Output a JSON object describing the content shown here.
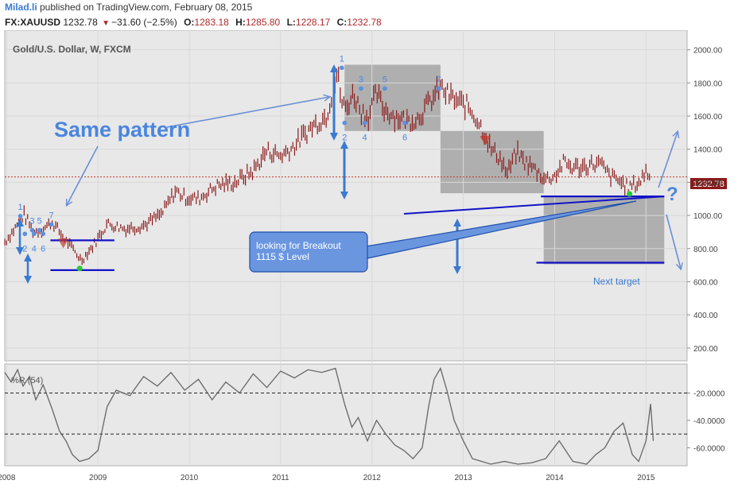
{
  "header": {
    "brand": "Milad.li",
    "published": " published on TradingView.com, February 08, 2015",
    "symbol": "FX:XAUUSD",
    "last": "1232.78",
    "change": "−31.60 (−2.5%)",
    "o_label": "O:",
    "o_value": "1283.18",
    "h_label": "H:",
    "h_value": "1285.80",
    "l_label": "L:",
    "l_value": "1228.17",
    "c_label": "C:",
    "c_value": "1232.78"
  },
  "main": {
    "title": "Gold/U.S. Dollar, W, FXCM",
    "pattern_text": "Same pattern",
    "callout_text_1": "looking for Breakout",
    "callout_text_2": "1115 $ Level",
    "next_target": "Next target",
    "question": "?",
    "price_tag": "1232.78"
  },
  "indicator": {
    "label": "%R (54)"
  },
  "colors": {
    "candle": "#8b1a1a",
    "annotation": "#3a7ad1",
    "box": "#a5a5a5",
    "level": "#1212c8",
    "pane": "#ececec"
  },
  "chart_data": [
    {
      "type": "line",
      "title": "Gold/U.S. Dollar, W, FXCM",
      "x_ticks": [
        "2008",
        "2009",
        "2010",
        "2011",
        "2012",
        "2013",
        "2014",
        "2015"
      ],
      "y_ticks": [
        200,
        400,
        600,
        800,
        1000,
        1200,
        1400,
        1600,
        1800,
        2000
      ],
      "y_tick_labels": [
        "200.00",
        "400.00",
        "600.00",
        "800.00",
        "1000.00",
        "1200.00",
        "1400.00",
        "1600.00",
        "1800.00",
        "2000.00"
      ],
      "ylim": [
        180,
        2080
      ],
      "xlim": [
        2007.98,
        2015.45
      ],
      "series": [
        {
          "style": "weekly bars",
          "x": [
            2007.98,
            2008.1,
            2008.19,
            2008.3,
            2008.4,
            2008.5,
            2008.62,
            2008.72,
            2008.82,
            2008.95,
            2009.1,
            2009.3,
            2009.5,
            2009.7,
            2009.85,
            2009.95,
            2010.1,
            2010.3,
            2010.5,
            2010.7,
            2010.85,
            2011.0,
            2011.15,
            2011.35,
            2011.5,
            2011.62,
            2011.67,
            2011.72,
            2011.76,
            2011.8,
            2011.88,
            2011.96,
            2012.05,
            2012.12,
            2012.25,
            2012.4,
            2012.5,
            2012.6,
            2012.75,
            2012.85,
            2012.95,
            2013.05,
            2013.15,
            2013.25,
            2013.3,
            2013.4,
            2013.48,
            2013.58,
            2013.68,
            2013.78,
            2013.9,
            2014.0,
            2014.1,
            2014.2,
            2014.3,
            2014.4,
            2014.5,
            2014.6,
            2014.7,
            2014.8,
            2014.86,
            2014.93,
            2015.0,
            2015.05
          ],
          "y": [
            840,
            930,
            1005,
            900,
            920,
            960,
            870,
            800,
            730,
            820,
            950,
            920,
            940,
            1010,
            1150,
            1110,
            1100,
            1180,
            1200,
            1270,
            1390,
            1360,
            1420,
            1540,
            1600,
            1860,
            1680,
            1640,
            1700,
            1730,
            1630,
            1600,
            1740,
            1650,
            1600,
            1570,
            1590,
            1660,
            1770,
            1720,
            1680,
            1660,
            1580,
            1480,
            1400,
            1350,
            1250,
            1380,
            1320,
            1280,
            1220,
            1240,
            1320,
            1290,
            1290,
            1310,
            1310,
            1240,
            1210,
            1170,
            1180,
            1200,
            1270,
            1232
          ]
        },
        {
          "name": "",
          "style": "horizontal reference",
          "value": 1232.78
        }
      ],
      "annotations": [
        {
          "text": "1",
          "x": 2008.15,
          "y": 1025
        },
        {
          "text": "3",
          "x": 2008.28,
          "y": 940
        },
        {
          "text": "5",
          "x": 2008.36,
          "y": 940
        },
        {
          "text": "7",
          "x": 2008.49,
          "y": 975
        },
        {
          "text": "2",
          "x": 2008.2,
          "y": 860
        },
        {
          "text": "4",
          "x": 2008.3,
          "y": 860
        },
        {
          "text": "6",
          "x": 2008.4,
          "y": 860
        },
        {
          "text": "1",
          "x": 2011.67,
          "y": 1920
        },
        {
          "text": "3",
          "x": 2011.88,
          "y": 1795
        },
        {
          "text": "5",
          "x": 2012.14,
          "y": 1795
        },
        {
          "text": "7",
          "x": 2012.73,
          "y": 1795
        },
        {
          "text": "2",
          "x": 2011.7,
          "y": 1530
        },
        {
          "text": "4",
          "x": 2011.92,
          "y": 1530
        },
        {
          "text": "6",
          "x": 2012.36,
          "y": 1530
        }
      ],
      "levels": [
        {
          "x0": 2008.48,
          "x1": 2009.18,
          "y": 850
        },
        {
          "x0": 2008.48,
          "x1": 2009.18,
          "y": 670
        },
        {
          "x0": 2013.85,
          "x1": 2015.2,
          "y": 1115
        },
        {
          "x0": 2013.8,
          "x1": 2015.2,
          "y": 715
        }
      ]
    },
    {
      "type": "line",
      "title": "",
      "series_label": "%R (54)",
      "y_ticks": [
        -20,
        -40,
        -60
      ],
      "y_tick_labels": [
        "-20.0000",
        "-40.0000",
        "-60.0000"
      ],
      "ylim": [
        -72,
        0
      ],
      "xlim": [
        2007.98,
        2015.45
      ],
      "series": [
        {
          "x": [
            2007.98,
            2008.05,
            2008.12,
            2008.18,
            2008.25,
            2008.32,
            2008.4,
            2008.5,
            2008.58,
            2008.65,
            2008.72,
            2008.8,
            2008.9,
            2009.0,
            2009.1,
            2009.2,
            2009.35,
            2009.5,
            2009.65,
            2009.8,
            2009.95,
            2010.1,
            2010.25,
            2010.4,
            2010.55,
            2010.7,
            2010.85,
            2011.0,
            2011.15,
            2011.3,
            2011.45,
            2011.6,
            2011.7,
            2011.78,
            2011.85,
            2011.95,
            2012.05,
            2012.15,
            2012.25,
            2012.35,
            2012.45,
            2012.55,
            2012.62,
            2012.68,
            2012.75,
            2012.82,
            2012.9,
            2013.0,
            2013.1,
            2013.2,
            2013.3,
            2013.45,
            2013.6,
            2013.75,
            2013.9,
            2014.05,
            2014.2,
            2014.35,
            2014.45,
            2014.55,
            2014.65,
            2014.75,
            2014.85,
            2014.92,
            2015.0,
            2015.05,
            2015.08
          ],
          "y": [
            -5,
            -12,
            -3,
            -15,
            -8,
            -25,
            -14,
            -32,
            -48,
            -55,
            -65,
            -70,
            -68,
            -62,
            -30,
            -18,
            -22,
            -8,
            -15,
            -5,
            -18,
            -10,
            -25,
            -12,
            -20,
            -6,
            -16,
            -4,
            -9,
            -3,
            -5,
            -2,
            -28,
            -45,
            -38,
            -55,
            -40,
            -50,
            -58,
            -62,
            -68,
            -60,
            -30,
            -10,
            -2,
            -18,
            -40,
            -55,
            -68,
            -70,
            -72,
            -70,
            -72,
            -71,
            -68,
            -55,
            -70,
            -72,
            -65,
            -60,
            -48,
            -42,
            -65,
            -70,
            -55,
            -28,
            -55
          ]
        }
      ],
      "reference_lines": [
        -20,
        -50
      ]
    }
  ]
}
